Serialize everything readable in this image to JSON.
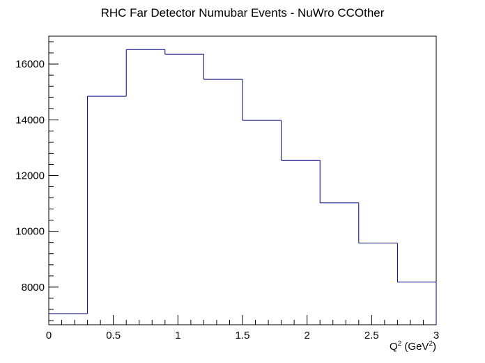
{
  "chart_data": {
    "type": "histogram",
    "title": "RHC Far Detector Numubar Events - NuWro CCOther",
    "xlabel": {
      "base": "Q",
      "sup1": "2",
      "middle": " (GeV",
      "sup2": "2",
      "end": ")"
    },
    "ylabel": "",
    "xlim": [
      0,
      3
    ],
    "ylim": [
      6650,
      17000
    ],
    "x_ticks": [
      {
        "value": 0,
        "label": "0"
      },
      {
        "value": 0.5,
        "label": "0.5"
      },
      {
        "value": 1,
        "label": "1"
      },
      {
        "value": 1.5,
        "label": "1.5"
      },
      {
        "value": 2,
        "label": "2"
      },
      {
        "value": 2.5,
        "label": "2.5"
      },
      {
        "value": 3,
        "label": "3"
      }
    ],
    "y_ticks": [
      {
        "value": 8000,
        "label": "8000"
      },
      {
        "value": 10000,
        "label": "10000"
      },
      {
        "value": 12000,
        "label": "12000"
      },
      {
        "value": 14000,
        "label": "14000"
      },
      {
        "value": 16000,
        "label": "16000"
      }
    ],
    "bin_edges": [
      0,
      0.3,
      0.6,
      0.9,
      1.2,
      1.5,
      1.8,
      2.1,
      2.4,
      2.7,
      3.0
    ],
    "values": [
      7050,
      14850,
      16520,
      16350,
      15450,
      13980,
      12550,
      11020,
      9580,
      8180
    ],
    "line_color": "#00007f",
    "grid": false
  }
}
